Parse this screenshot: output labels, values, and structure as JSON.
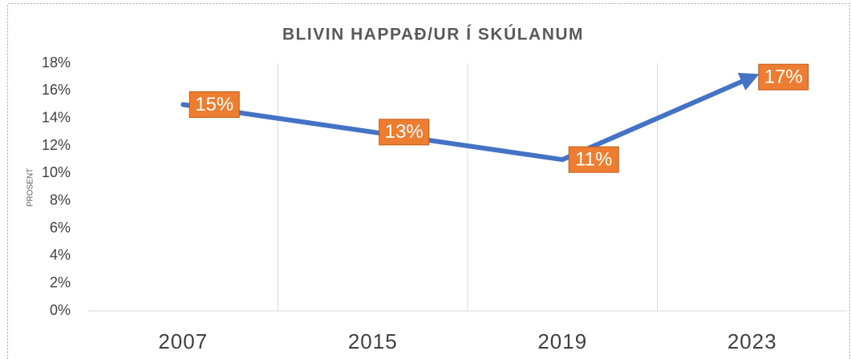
{
  "chart_data": {
    "type": "line",
    "title": "BLIVIN HAPPAÐ/UR Í SKÚLANUM",
    "ylabel": "PROSENT",
    "categories": [
      "2007",
      "2015",
      "2019",
      "2023"
    ],
    "values": [
      15,
      13,
      11,
      17
    ],
    "value_labels": [
      "15%",
      "13%",
      "11%",
      "17%"
    ],
    "color": "#4472c4",
    "label_color": "#ed7d31",
    "ylim": [
      0,
      18
    ],
    "yticks": [
      {
        "value": 0,
        "label": "0%"
      },
      {
        "value": 2,
        "label": "2%"
      },
      {
        "value": 4,
        "label": "4%"
      },
      {
        "value": 6,
        "label": "6%"
      },
      {
        "value": 8,
        "label": "8%"
      },
      {
        "value": 10,
        "label": "10%"
      },
      {
        "value": 12,
        "label": "12%"
      },
      {
        "value": 14,
        "label": "14%"
      },
      {
        "value": 16,
        "label": "16%"
      },
      {
        "value": 18,
        "label": "18%"
      }
    ],
    "grid": false
  }
}
